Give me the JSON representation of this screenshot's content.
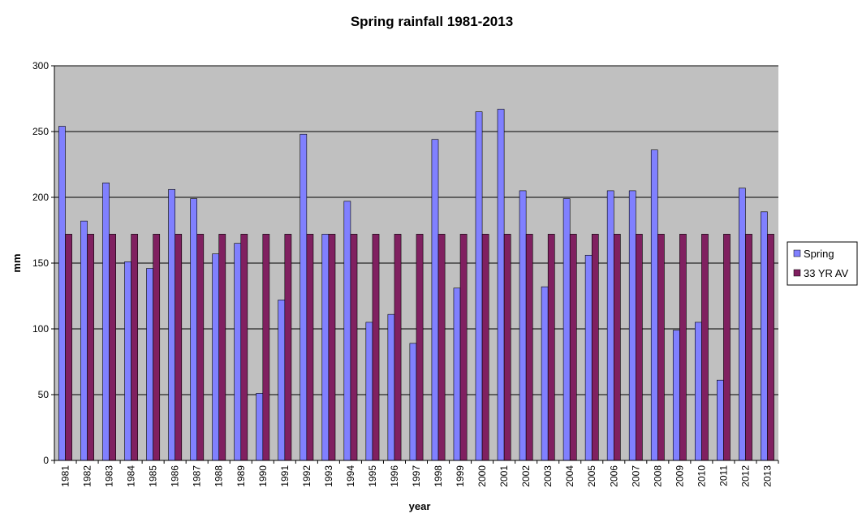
{
  "chart_data": {
    "type": "bar",
    "title": "Spring rainfall 1981-2013",
    "xlabel": "year",
    "ylabel": "mm",
    "ylim": [
      0,
      300
    ],
    "yticks": [
      0,
      50,
      100,
      150,
      200,
      250,
      300
    ],
    "grid": true,
    "legend_position": "right",
    "plot_background": "#c0c0c0",
    "categories": [
      "1981",
      "1982",
      "1983",
      "1984",
      "1985",
      "1986",
      "1987",
      "1988",
      "1989",
      "1990",
      "1991",
      "1992",
      "1993",
      "1994",
      "1995",
      "1996",
      "1997",
      "1998",
      "1999",
      "2000",
      "2001",
      "2002",
      "2003",
      "2004",
      "2005",
      "2006",
      "2007",
      "2008",
      "2009",
      "2010",
      "2011",
      "2012",
      "2013"
    ],
    "series": [
      {
        "name": "Spring",
        "color": "#8080ff",
        "values": [
          254,
          182,
          211,
          151,
          146,
          206,
          199,
          157,
          165,
          51,
          122,
          248,
          172,
          197,
          105,
          111,
          89,
          244,
          131,
          265,
          267,
          205,
          132,
          199,
          156,
          205,
          205,
          236,
          99,
          105,
          61,
          207,
          189
        ]
      },
      {
        "name": "33 YR AV",
        "color": "#802060",
        "values": [
          172,
          172,
          172,
          172,
          172,
          172,
          172,
          172,
          172,
          172,
          172,
          172,
          172,
          172,
          172,
          172,
          172,
          172,
          172,
          172,
          172,
          172,
          172,
          172,
          172,
          172,
          172,
          172,
          172,
          172,
          172,
          172,
          172
        ]
      }
    ]
  }
}
